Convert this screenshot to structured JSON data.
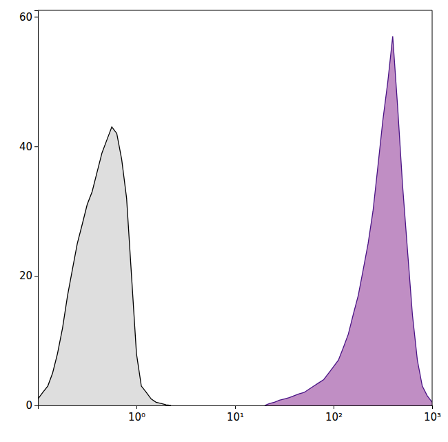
{
  "chart_data": {
    "type": "area",
    "log": "x",
    "grid": false,
    "xlim": [
      0.1,
      1000
    ],
    "ylim": [
      0,
      61
    ],
    "xticks": [
      {
        "value": 1,
        "label": "10⁰"
      },
      {
        "value": 10,
        "label": "10¹"
      },
      {
        "value": 100,
        "label": "10²"
      },
      {
        "value": 1000,
        "label": "10³"
      }
    ],
    "yticks": [
      0,
      20,
      40,
      60
    ],
    "x": [
      0.1,
      0.112,
      0.126,
      0.141,
      0.158,
      0.178,
      0.2,
      0.224,
      0.251,
      0.282,
      0.316,
      0.355,
      0.398,
      0.447,
      0.501,
      0.562,
      0.631,
      0.708,
      0.794,
      0.891,
      1,
      1.12,
      1.26,
      1.41,
      1.58,
      1.78,
      2,
      2.24,
      20,
      22.4,
      25.1,
      28.2,
      31.6,
      35.5,
      39.8,
      44.7,
      50.1,
      56.2,
      63.1,
      70.8,
      79.4,
      89.1,
      100,
      112,
      126,
      141,
      158,
      178,
      200,
      224,
      251,
      282,
      316,
      355,
      398,
      447,
      501,
      562,
      631,
      708,
      794,
      891,
      1000
    ],
    "series": [
      {
        "color": "#dedede",
        "values": [
          1,
          2,
          3,
          5,
          8,
          12,
          17,
          21,
          25,
          28,
          31,
          33,
          36,
          39,
          41,
          43,
          42,
          38,
          32,
          20,
          8,
          3,
          2,
          1,
          0.5,
          0.3,
          0.1,
          0,
          null,
          null,
          null,
          null,
          null,
          null,
          null,
          null,
          null,
          null,
          null,
          null,
          null,
          null,
          null,
          null,
          null,
          null,
          null,
          null,
          null,
          null,
          null,
          null,
          null,
          null,
          null,
          null,
          null,
          null,
          null,
          null,
          null,
          null,
          null
        ]
      },
      {
        "color": "#c08ec4",
        "values": [
          null,
          null,
          null,
          null,
          null,
          null,
          null,
          null,
          null,
          null,
          null,
          null,
          null,
          null,
          null,
          null,
          null,
          null,
          null,
          null,
          null,
          null,
          null,
          null,
          null,
          null,
          null,
          null,
          0,
          0.3,
          0.5,
          0.8,
          1,
          1.2,
          1.5,
          1.8,
          2,
          2.5,
          3,
          3.5,
          4,
          5,
          6,
          7,
          9,
          11,
          14,
          17,
          21,
          25,
          30,
          37,
          44,
          50,
          57,
          46,
          34,
          24,
          14,
          7,
          3,
          1.5,
          0.5
        ]
      }
    ]
  }
}
